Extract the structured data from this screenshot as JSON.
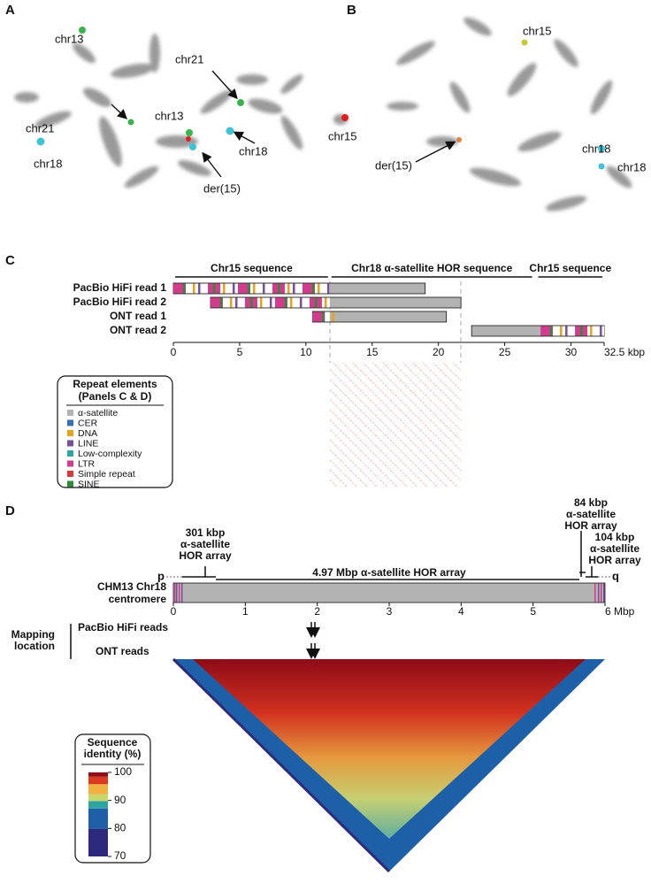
{
  "panel_a": {
    "letter": "A",
    "labels": [
      "chr13",
      "chr21",
      "chr21",
      "chr13",
      "chr18",
      "chr18",
      "der(15)",
      "chr15"
    ]
  },
  "panel_b": {
    "letter": "B",
    "labels": [
      "chr15",
      "chr18",
      "chr18",
      "der(15)"
    ]
  },
  "panel_c": {
    "letter": "C",
    "regions": [
      {
        "label": "Chr15 sequence",
        "start": 0,
        "end": 11.8
      },
      {
        "label": "Chr18 α-satellite HOR sequence",
        "start": 11.8,
        "end": 27.2
      },
      {
        "label": "Chr15 sequence",
        "start": 27.4,
        "end": 32.5
      }
    ],
    "reads": [
      {
        "name": "PacBio HiFi read 1",
        "start": 0,
        "end": 19
      },
      {
        "name": "PacBio HiFi read 2",
        "start": 2.8,
        "end": 21.7
      },
      {
        "name": "ONT read 1",
        "start": 10.5,
        "end": 20.6
      },
      {
        "name": "ONT read 2",
        "start": 22.5,
        "end": 32.5
      }
    ],
    "ticks": [
      0,
      5,
      10,
      15,
      20,
      25,
      30,
      {
        "value": 32.5,
        "label": "32.5 kbp"
      }
    ]
  },
  "legend": {
    "title": [
      "Repeat elements",
      "(Panels C & D)"
    ],
    "items": [
      {
        "name": "α-satellite",
        "color": "#b3b3b3"
      },
      {
        "name": "CER",
        "color": "#3a6fb5"
      },
      {
        "name": "DNA",
        "color": "#e8a21c"
      },
      {
        "name": "LINE",
        "color": "#7b4f9e"
      },
      {
        "name": "Low-complexity",
        "color": "#2fa6a6"
      },
      {
        "name": "LTR",
        "color": "#d23c8c"
      },
      {
        "name": "Simple repeat",
        "color": "#d63a3a"
      },
      {
        "name": "SINE",
        "color": "#2e8b3a"
      }
    ]
  },
  "panel_d": {
    "letter": "D",
    "arrays": [
      [
        "301 kbp",
        "α-satellite",
        "HOR array"
      ],
      [
        "4.97 Mbp α-satellite HOR array"
      ],
      [
        "84 kbp",
        "α-satellite",
        "HOR array"
      ],
      [
        "104 kbp",
        "α-satellite",
        "HOR array"
      ]
    ],
    "p": "p",
    "q": "q",
    "track_label": [
      "CHM13 Chr18",
      "centromere"
    ],
    "ticks": [
      0,
      1,
      2,
      3,
      4,
      5,
      {
        "value": 6,
        "label": "6 Mbp"
      }
    ],
    "mapping": {
      "title": [
        "Mapping",
        "location"
      ],
      "rows": [
        "PacBio HiFi reads",
        "ONT reads"
      ]
    },
    "colorbar": {
      "title": [
        "Sequence",
        "identity (%)"
      ],
      "ticks": [
        70,
        80,
        90,
        100
      ]
    }
  }
}
